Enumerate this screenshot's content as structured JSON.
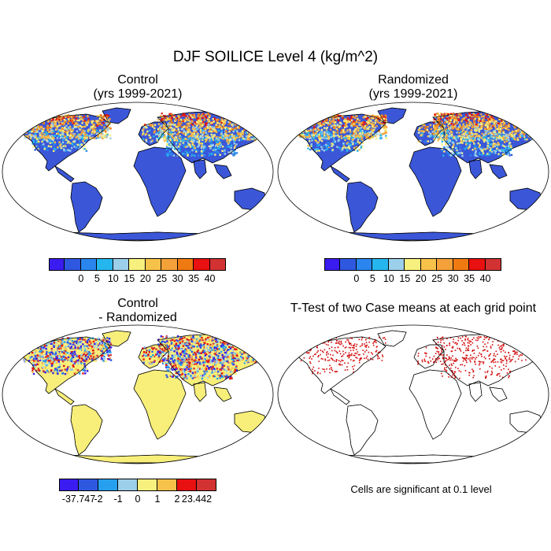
{
  "title": "DJF SOILICE Level 4 (kg/m^2)",
  "panels": {
    "control": {
      "title_line1": "Control",
      "title_line2": "(yrs 1999-2021)"
    },
    "randomized": {
      "title_line1": "Randomized",
      "title_line2": "(yrs 1999-2021)"
    },
    "difference": {
      "title_line1": "Control",
      "title_line2": "- Randomized"
    },
    "ttest": {
      "title_line1": "T-Test of two Case means at each grid point"
    }
  },
  "colorbar_main": {
    "colors": [
      "#3a1cf0",
      "#2f58e0",
      "#2a86ee",
      "#26b6ee",
      "#9ccfe9",
      "#f8f07e",
      "#f7c24a",
      "#f4a13a",
      "#f07a12",
      "#e81010",
      "#d23232"
    ],
    "labels": [
      "0",
      "5",
      "10",
      "15",
      "20",
      "25",
      "30",
      "35",
      "40"
    ]
  },
  "colorbar_diff": {
    "colors": [
      "#3a1cf0",
      "#2f58e0",
      "#26a0ee",
      "#9ccfe9",
      "#f8f07e",
      "#f7c24a",
      "#e81010",
      "#d23232"
    ],
    "labels": [
      "-37.747",
      "-2",
      "-1",
      "0",
      "1",
      "2",
      "23.442"
    ]
  },
  "ttest_note": "Cells are significant at 0.1 level",
  "colors": {
    "ocean": "#ffffff",
    "land_base": "#3b57d8",
    "diff_land": "#f8ef7a",
    "significant": "#d40b0b"
  }
}
